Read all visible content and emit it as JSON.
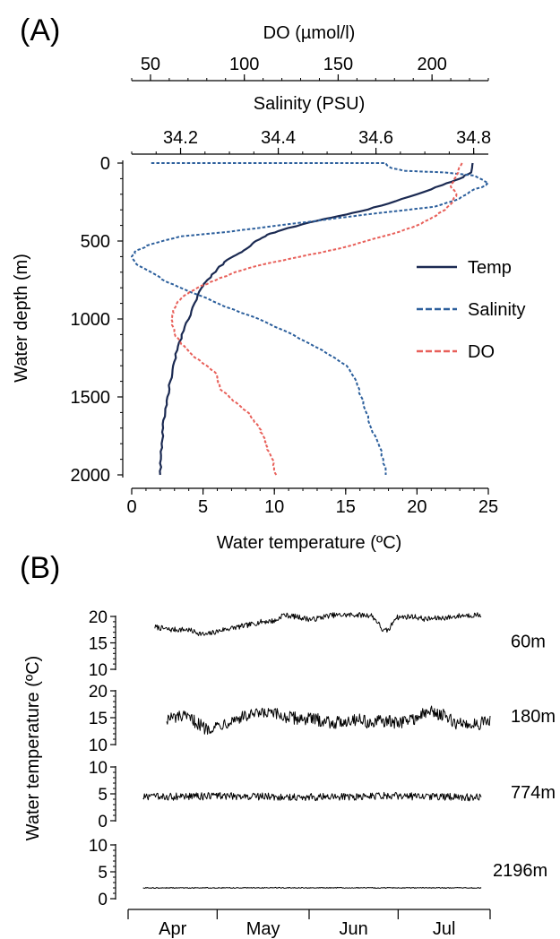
{
  "panel_labels": {
    "a": "(A)",
    "b": "(B)"
  },
  "chart_data": [
    {
      "type": "line",
      "panel": "(A)",
      "y_axis": {
        "label": "Water depth (m)",
        "range": [
          2000,
          0
        ],
        "ticks": [
          0,
          500,
          1000,
          1500,
          2000
        ],
        "direction": "down"
      },
      "x_axes": [
        {
          "key": "temp",
          "label": "Water temperature (ºC)",
          "position": "bottom",
          "range": [
            0,
            25
          ],
          "ticks": [
            0,
            5,
            10,
            15,
            20,
            25
          ]
        },
        {
          "key": "sal",
          "label": "Salinity (PSU)",
          "position": "top",
          "range": [
            34.1,
            34.83
          ],
          "ticks": [
            34.2,
            34.4,
            34.6,
            34.8
          ],
          "tick_labels": [
            "34.2",
            "34.4",
            "34.6",
            "34.8"
          ]
        },
        {
          "key": "do",
          "label": "DO (µmol/l)",
          "position": "top",
          "range": [
            40,
            230
          ],
          "ticks": [
            50,
            100,
            150,
            200
          ]
        }
      ],
      "legend": {
        "placement": "right",
        "entries": [
          "Temp",
          "Salinity",
          "DO"
        ]
      },
      "series": [
        {
          "name": "Temp",
          "axis": "temp",
          "color": "#1b2a52",
          "dash": "solid",
          "points": [
            [
              23.9,
              0
            ],
            [
              23.8,
              60
            ],
            [
              23.0,
              100
            ],
            [
              21.8,
              140
            ],
            [
              20.0,
              200
            ],
            [
              18.0,
              260
            ],
            [
              16.0,
              310
            ],
            [
              14.0,
              350
            ],
            [
              12.5,
              380
            ],
            [
              10.5,
              430
            ],
            [
              9.5,
              460
            ],
            [
              8.7,
              500
            ],
            [
              8.2,
              540
            ],
            [
              7.5,
              580
            ],
            [
              6.7,
              620
            ],
            [
              6.0,
              680
            ],
            [
              5.3,
              750
            ],
            [
              4.9,
              800
            ],
            [
              4.4,
              900
            ],
            [
              4.0,
              1000
            ],
            [
              3.5,
              1100
            ],
            [
              3.2,
              1200
            ],
            [
              2.9,
              1300
            ],
            [
              2.7,
              1400
            ],
            [
              2.5,
              1500
            ],
            [
              2.35,
              1600
            ],
            [
              2.2,
              1700
            ],
            [
              2.1,
              1800
            ],
            [
              2.05,
              1900
            ],
            [
              2.0,
              2000
            ]
          ]
        },
        {
          "name": "Salinity",
          "axis": "sal",
          "color": "#2c5f9c",
          "dash": "dashed",
          "points": [
            [
              34.14,
              0
            ],
            [
              34.62,
              0
            ],
            [
              34.63,
              30
            ],
            [
              34.66,
              50
            ],
            [
              34.74,
              60
            ],
            [
              34.8,
              80
            ],
            [
              34.82,
              110
            ],
            [
              34.83,
              130
            ],
            [
              34.82,
              150
            ],
            [
              34.8,
              170
            ],
            [
              34.77,
              230
            ],
            [
              34.72,
              280
            ],
            [
              34.58,
              330
            ],
            [
              34.48,
              370
            ],
            [
              34.4,
              400
            ],
            [
              34.3,
              440
            ],
            [
              34.2,
              470
            ],
            [
              34.14,
              520
            ],
            [
              34.11,
              560
            ],
            [
              34.1,
              600
            ],
            [
              34.11,
              650
            ],
            [
              34.14,
              700
            ],
            [
              34.17,
              760
            ],
            [
              34.2,
              800
            ],
            [
              34.24,
              850
            ],
            [
              34.29,
              920
            ],
            [
              34.36,
              1000
            ],
            [
              34.43,
              1100
            ],
            [
              34.49,
              1200
            ],
            [
              34.54,
              1300
            ],
            [
              34.56,
              1400
            ],
            [
              34.57,
              1500
            ],
            [
              34.58,
              1600
            ],
            [
              34.59,
              1700
            ],
            [
              34.605,
              1800
            ],
            [
              34.615,
              1900
            ],
            [
              34.62,
              2000
            ]
          ]
        },
        {
          "name": "DO",
          "axis": "do",
          "color": "#e8605a",
          "dash": "dashed",
          "points": [
            [
              216,
              0
            ],
            [
              214,
              60
            ],
            [
              212,
              100
            ],
            [
              210,
              150
            ],
            [
              213,
              200
            ],
            [
              211,
              250
            ],
            [
              207,
              300
            ],
            [
              200,
              350
            ],
            [
              192,
              400
            ],
            [
              180,
              450
            ],
            [
              165,
              500
            ],
            [
              150,
              550
            ],
            [
              130,
              600
            ],
            [
              110,
              650
            ],
            [
              95,
              700
            ],
            [
              85,
              750
            ],
            [
              75,
              800
            ],
            [
              68,
              850
            ],
            [
              64,
              900
            ],
            [
              62,
              950
            ],
            [
              61,
              1000
            ],
            [
              62,
              1050
            ],
            [
              63,
              1100
            ],
            [
              66,
              1150
            ],
            [
              70,
              1200
            ],
            [
              74,
              1250
            ],
            [
              80,
              1300
            ],
            [
              85,
              1350
            ],
            [
              86,
              1400
            ],
            [
              87,
              1450
            ],
            [
              92,
              1500
            ],
            [
              97,
              1550
            ],
            [
              102,
              1600
            ],
            [
              105,
              1650
            ],
            [
              108,
              1700
            ],
            [
              110,
              1750
            ],
            [
              112,
              1800
            ],
            [
              113,
              1850
            ],
            [
              115,
              1900
            ],
            [
              116,
              1950
            ],
            [
              117,
              2000
            ]
          ]
        }
      ]
    },
    {
      "type": "line",
      "panel": "(B)",
      "y_label": "Water temperature (ºC)",
      "x_months": [
        "Apr",
        "May",
        "Jun",
        "Jul"
      ],
      "x_range_days": [
        0,
        122
      ],
      "series": [
        {
          "name": "60m",
          "ylim": [
            10,
            20
          ],
          "ticks": [
            10,
            15,
            20
          ],
          "base": 18,
          "amp": 0.5,
          "color": "#000000",
          "knots": [
            [
              9,
              18.0
            ],
            [
              14,
              17.5
            ],
            [
              20,
              17.5
            ],
            [
              26,
              16.5
            ],
            [
              32,
              17.5
            ],
            [
              40,
              18.3
            ],
            [
              45,
              19.0
            ],
            [
              50,
              19.2
            ],
            [
              52,
              20.3
            ],
            [
              56,
              20.0
            ],
            [
              62,
              19.4
            ],
            [
              68,
              20.2
            ],
            [
              76,
              20.3
            ],
            [
              82,
              20.2
            ],
            [
              84,
              19.0
            ],
            [
              86,
              17.2
            ],
            [
              88,
              17.5
            ],
            [
              90,
              19.8
            ],
            [
              96,
              20.0
            ],
            [
              100,
              19.5
            ],
            [
              108,
              19.8
            ],
            [
              113,
              20.2
            ],
            [
              119,
              20.3
            ]
          ]
        },
        {
          "name": "180m",
          "ylim": [
            10,
            20
          ],
          "ticks": [
            10,
            15,
            20
          ],
          "base": 14,
          "amp": 1.2,
          "color": "#000000",
          "knots": [
            [
              13,
              14.8
            ],
            [
              18,
              15.2
            ],
            [
              22,
              14.5
            ],
            [
              26,
              13.0
            ],
            [
              30,
              13.5
            ],
            [
              36,
              14.8
            ],
            [
              42,
              15.5
            ],
            [
              48,
              15.8
            ],
            [
              54,
              15.0
            ],
            [
              60,
              14.8
            ],
            [
              66,
              14.5
            ],
            [
              70,
              14.0
            ],
            [
              74,
              14.5
            ],
            [
              78,
              14.8
            ],
            [
              82,
              13.8
            ],
            [
              86,
              14.5
            ],
            [
              90,
              14.0
            ],
            [
              96,
              14.8
            ],
            [
              102,
              16.2
            ],
            [
              106,
              15.5
            ],
            [
              110,
              14.0
            ],
            [
              116,
              13.8
            ],
            [
              122,
              14.2
            ]
          ]
        },
        {
          "name": "774m",
          "ylim": [
            0,
            10
          ],
          "ticks": [
            0,
            5,
            10
          ],
          "base": 4.5,
          "amp": 0.7,
          "color": "#000000",
          "knots": [
            [
              5,
              4.4
            ],
            [
              30,
              4.6
            ],
            [
              60,
              4.4
            ],
            [
              90,
              4.6
            ],
            [
              119,
              4.3
            ]
          ]
        },
        {
          "name": "2196m",
          "ylim": [
            0,
            10
          ],
          "ticks": [
            0,
            5,
            10
          ],
          "base": 2.0,
          "amp": 0.08,
          "color": "#000000",
          "knots": [
            [
              5,
              2.0
            ],
            [
              60,
              2.02
            ],
            [
              119,
              2.0
            ]
          ]
        }
      ]
    }
  ]
}
